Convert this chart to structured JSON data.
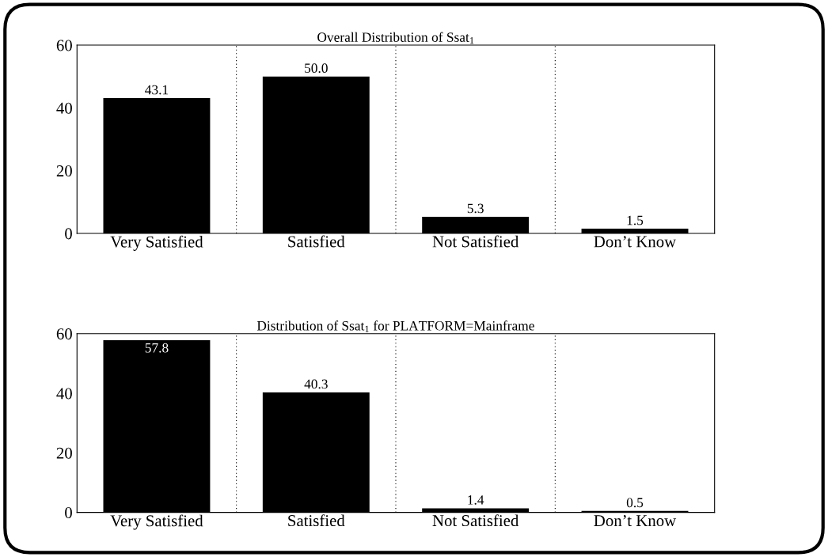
{
  "chart_data": [
    {
      "type": "bar",
      "title": "Overall Distribution of Ssat$_{1}$",
      "categories": [
        "Very Satisfied",
        "Satisfied",
        "Not Satisfied",
        "Don’t Know"
      ],
      "values": [
        43.1,
        50.0,
        5.3,
        1.5
      ],
      "value_labels": [
        "43.1",
        "50.0",
        "5.3",
        "1.5"
      ],
      "color": "#000000",
      "ylim": [
        0,
        60
      ],
      "yticks": [
        0,
        20,
        40,
        60
      ],
      "grid": "x"
    },
    {
      "type": "bar",
      "title": "Distribution of Ssat$_{1}$ for PLATFORM=Mainframe",
      "categories": [
        "Very Satisfied",
        "Satisfied",
        "Not Satisfied",
        "Don’t Know"
      ],
      "values": [
        57.8,
        40.3,
        1.4,
        0.5
      ],
      "value_labels": [
        "57.8",
        "40.3",
        "1.4",
        "0.5"
      ],
      "color": "#000000",
      "ylim": [
        0,
        60
      ],
      "yticks": [
        0,
        20,
        40,
        60
      ],
      "grid": "x"
    }
  ]
}
